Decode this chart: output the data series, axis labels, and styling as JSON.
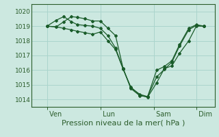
{
  "background_color": "#cce8e0",
  "grid_color": "#aad4cc",
  "line_color": "#1a5c2a",
  "marker_color": "#1a5c2a",
  "xlabel": "Pression niveau de la mer( hPa )",
  "ylim": [
    1013.5,
    1020.5
  ],
  "yticks": [
    1014,
    1015,
    1016,
    1017,
    1018,
    1019,
    1020
  ],
  "xtick_labels": [
    " Ven",
    " Lun",
    " Sam",
    " Dim"
  ],
  "xtick_positions": [
    10,
    45,
    80,
    108
  ],
  "series1_x": [
    10,
    16,
    21,
    26,
    30,
    35,
    40,
    45,
    50,
    55,
    60,
    65,
    71,
    76,
    82,
    87,
    92,
    97,
    103,
    108,
    113
  ],
  "series1_y": [
    1019.0,
    1019.4,
    1019.65,
    1019.3,
    1019.1,
    1019.05,
    1019.0,
    1018.85,
    1018.35,
    1017.5,
    1016.1,
    1014.75,
    1014.25,
    1014.2,
    1015.55,
    1016.05,
    1016.55,
    1017.65,
    1018.75,
    1019.05,
    1019.0
  ],
  "series2_x": [
    10,
    16,
    21,
    26,
    30,
    35,
    40,
    45,
    50,
    55,
    60,
    65,
    71,
    76,
    82,
    87,
    92,
    97,
    103,
    108,
    113
  ],
  "series2_y": [
    1019.0,
    1018.95,
    1018.85,
    1018.75,
    1018.65,
    1018.55,
    1018.45,
    1018.6,
    1018.0,
    1017.4,
    1016.05,
    1014.85,
    1014.3,
    1014.15,
    1015.15,
    1016.1,
    1016.3,
    1017.15,
    1018.0,
    1019.0,
    1019.0
  ],
  "series3_x": [
    10,
    16,
    21,
    26,
    30,
    35,
    40,
    45,
    50,
    55,
    60,
    65,
    71,
    76,
    82,
    87,
    92,
    97,
    103,
    108,
    113
  ],
  "series3_y": [
    1019.0,
    1018.95,
    1019.3,
    1019.65,
    1019.6,
    1019.5,
    1019.35,
    1019.35,
    1018.85,
    1018.35,
    1016.1,
    1014.8,
    1014.35,
    1014.2,
    1016.0,
    1016.25,
    1016.65,
    1017.75,
    1018.85,
    1019.1,
    1019.0
  ],
  "xlim": [
    0,
    120
  ],
  "ylabel_fontsize": 6.5,
  "xlabel_fontsize": 8.0,
  "xtick_fontsize": 7.0
}
